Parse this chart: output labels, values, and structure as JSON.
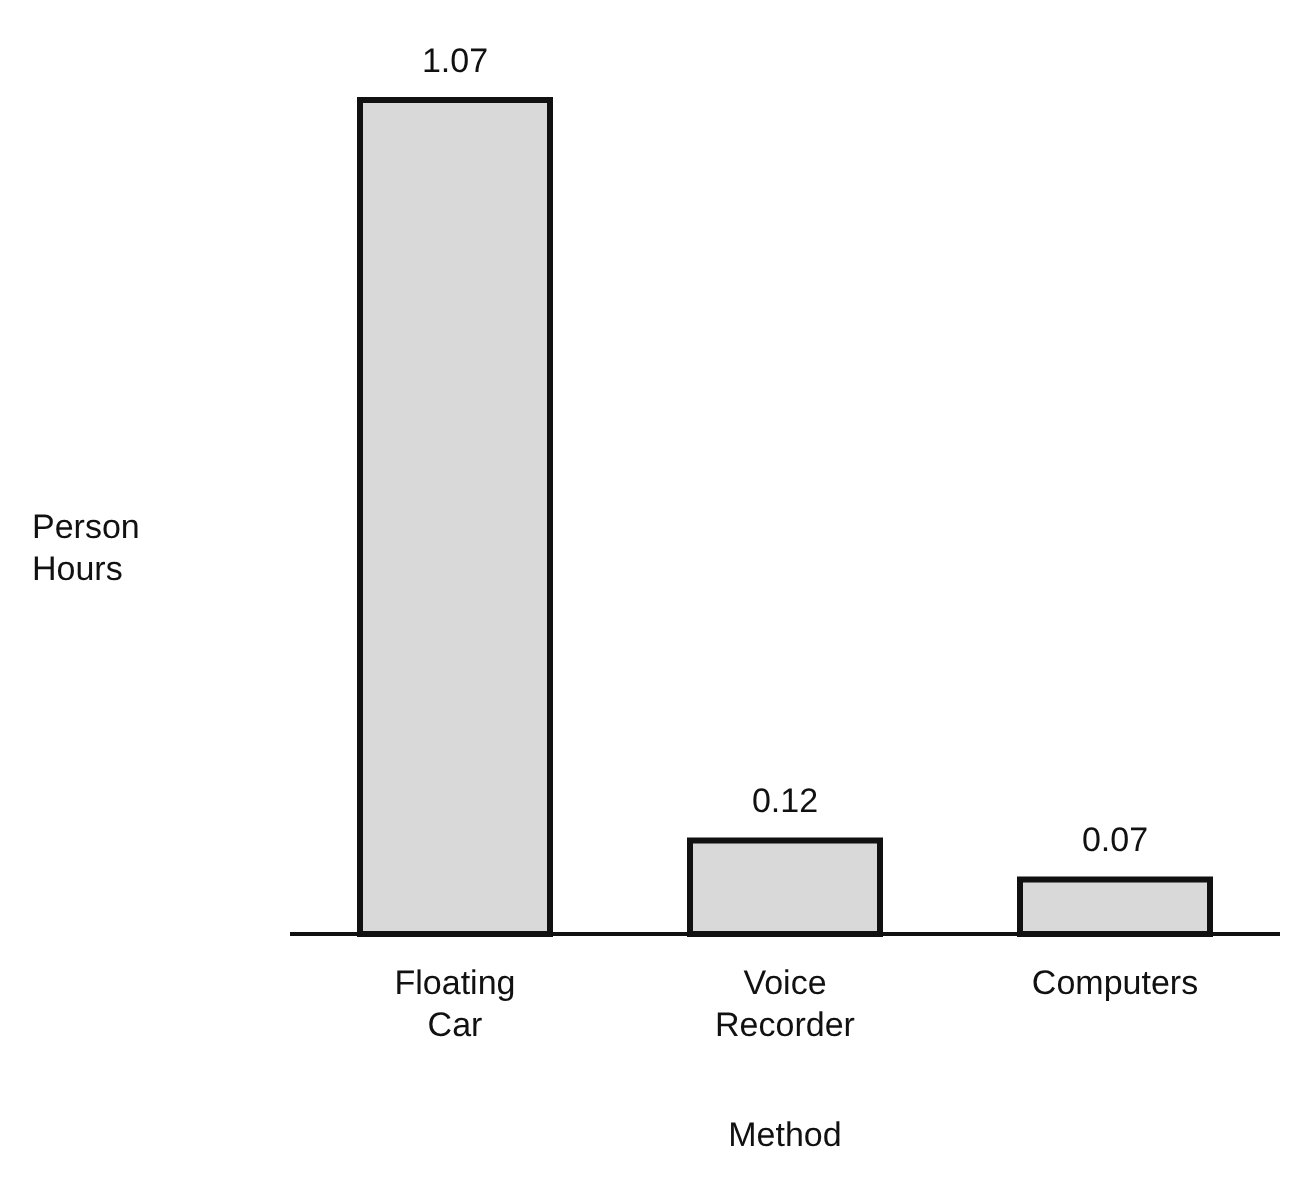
{
  "chart_data": {
    "type": "bar",
    "xlabel": "Method",
    "ylabel": "Person Hours",
    "categories": [
      "Floating Car",
      "Voice Recorder",
      "Computers"
    ],
    "values": [
      1.07,
      0.12,
      0.07
    ],
    "color": "#d9d9d9",
    "data_labels": true
  }
}
